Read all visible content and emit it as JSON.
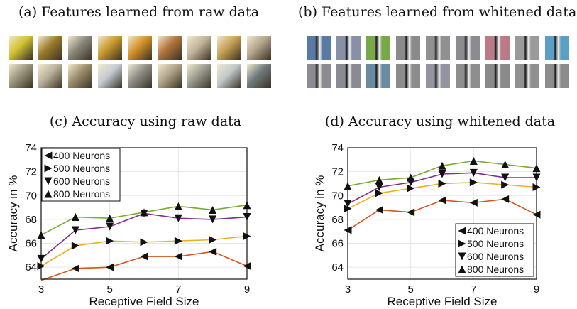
{
  "panels": {
    "a_title": "(a) Features learned from raw data",
    "b_title": "(b) Features learned from whitened data",
    "c_title": "(c) Accuracy using raw data",
    "d_title": "(d) Accuracy using whitened data"
  },
  "patches_raw": [
    [
      "#d2c233",
      "#9a7a2a",
      "#8a877a",
      "#c99a2e",
      "#d3922a",
      "#b2763e",
      "#c2b49a",
      "#c7a053",
      "#b4a48c"
    ],
    [
      "#9c967f",
      "#b9b09a",
      "#9c8c6a",
      "#c4ccd2",
      "#8e8e88",
      "#b0a488",
      "#9a9a8e",
      "#c0c8c8",
      "#6e7a7c"
    ]
  ],
  "patches_whitened": [
    [
      "#5a7aa6",
      "#8890a8",
      "#78a848",
      "#8a8a8a",
      "#909090",
      "#8c8c90",
      "#bc7a86",
      "#9a9a9a",
      "#5aa0c4"
    ],
    [
      "#8c8c90",
      "#8a8a94",
      "#6a8aa0",
      "#8c8c8c",
      "#9494a0",
      "#8e8e8e",
      "#8a8a8a",
      "#909090",
      "#8c8c8c"
    ]
  ],
  "chart_data": [
    {
      "type": "line",
      "title": "(c) Accuracy using raw data",
      "xlabel": "Receptive Field Size",
      "ylabel": "Accuracy in %",
      "x": [
        3,
        4,
        5,
        6,
        7,
        8,
        9
      ],
      "xticks": [
        3,
        5,
        7,
        9
      ],
      "yticks": [
        64,
        66,
        68,
        70,
        72,
        74
      ],
      "xlim": [
        3,
        9
      ],
      "ylim": [
        63,
        74
      ],
      "grid": true,
      "legend_position": "top-left",
      "series": [
        {
          "name": "400 Neurons",
          "marker": "triangle-left",
          "color": "#d95319",
          "values": [
            62.9,
            63.9,
            64.0,
            64.9,
            64.9,
            65.3,
            64.1
          ]
        },
        {
          "name": "500 Neurons",
          "marker": "triangle-right",
          "color": "#edb120",
          "values": [
            64.1,
            65.8,
            66.2,
            66.1,
            66.2,
            66.3,
            66.6
          ]
        },
        {
          "name": "600 Neurons",
          "marker": "triangle-down",
          "color": "#7e2f8e",
          "values": [
            64.7,
            67.1,
            67.4,
            68.5,
            68.1,
            68.0,
            68.2
          ]
        },
        {
          "name": "800 Neurons",
          "marker": "triangle-up",
          "color": "#77ac30",
          "values": [
            66.7,
            68.2,
            68.1,
            68.6,
            69.1,
            68.8,
            69.2
          ]
        }
      ]
    },
    {
      "type": "line",
      "title": "(d) Accuracy using whitened data",
      "xlabel": "Receptive Field Size",
      "ylabel": "Accuracy in %",
      "x": [
        3,
        4,
        5,
        6,
        7,
        8,
        9
      ],
      "xticks": [
        3,
        5,
        7,
        9
      ],
      "yticks": [
        64,
        66,
        68,
        70,
        72,
        74
      ],
      "xlim": [
        3,
        9
      ],
      "ylim": [
        63,
        74
      ],
      "grid": true,
      "legend_position": "bottom-right",
      "series": [
        {
          "name": "400 Neurons",
          "marker": "triangle-left",
          "color": "#d95319",
          "values": [
            67.1,
            68.8,
            68.6,
            69.6,
            69.4,
            69.7,
            68.4
          ]
        },
        {
          "name": "500 Neurons",
          "marker": "triangle-right",
          "color": "#edb120",
          "values": [
            68.9,
            70.2,
            70.6,
            71.0,
            71.1,
            70.9,
            70.7
          ]
        },
        {
          "name": "600 Neurons",
          "marker": "triangle-down",
          "color": "#7e2f8e",
          "values": [
            69.3,
            70.7,
            71.1,
            71.8,
            71.9,
            71.5,
            71.5
          ]
        },
        {
          "name": "800 Neurons",
          "marker": "triangle-up",
          "color": "#77ac30",
          "values": [
            70.8,
            71.3,
            71.5,
            72.5,
            72.9,
            72.6,
            72.3
          ]
        }
      ]
    }
  ]
}
